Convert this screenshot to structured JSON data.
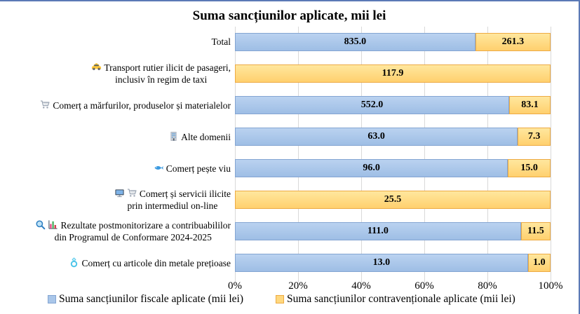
{
  "title": "Suma sancțiunilor aplicate, mii lei",
  "colors": {
    "fiscal_fill": "#A9C6E9",
    "fiscal_border": "#84A5D2",
    "contraventional_fill": "#FFD87E",
    "contraventional_border": "#EDAA43",
    "gridline": "#D9D9D9",
    "frame_border": "#5B79B6",
    "text": "#000000"
  },
  "chart_data": {
    "type": "bar",
    "orientation": "horizontal",
    "stacking": "100%",
    "title": "Suma sancțiunilor aplicate, mii lei",
    "categories": [
      "Total",
      "Transport rutier ilicit de pasageri,\ninclusiv în regim de taxi",
      "Comerț a mărfurilor, produselor și materialelor",
      "Alte domenii",
      "Comerț pește viu",
      "Comerț și servicii ilicite\nprin intermediul on-line",
      "Rezultate postmonitorizare a contribuabililor\ndin Programul de Conformare 2024-2025",
      "Comerț cu articole din metale prețioase"
    ],
    "category_icons": [
      [],
      [
        "taxi"
      ],
      [
        "cart"
      ],
      [
        "building"
      ],
      [
        "fish"
      ],
      [
        "laptop",
        "cart"
      ],
      [
        "magnifier",
        "bar-chart"
      ],
      [
        "ring"
      ]
    ],
    "series": [
      {
        "name": "Suma sancțiunilor fiscale aplicate (mii lei)",
        "values": [
          835.0,
          null,
          552.0,
          63.0,
          96.0,
          null,
          111.0,
          13.0
        ]
      },
      {
        "name": "Suma sancțiunilor contravenționale aplicate (mii lei)",
        "values": [
          261.3,
          117.9,
          83.1,
          7.3,
          15.0,
          25.5,
          11.5,
          1.0
        ]
      }
    ],
    "x_ticks": [
      "0%",
      "20%",
      "40%",
      "60%",
      "80%",
      "100%"
    ],
    "xlim": [
      0,
      100
    ],
    "grid": "vertical",
    "value_labels": true,
    "legend_position": "bottom"
  }
}
